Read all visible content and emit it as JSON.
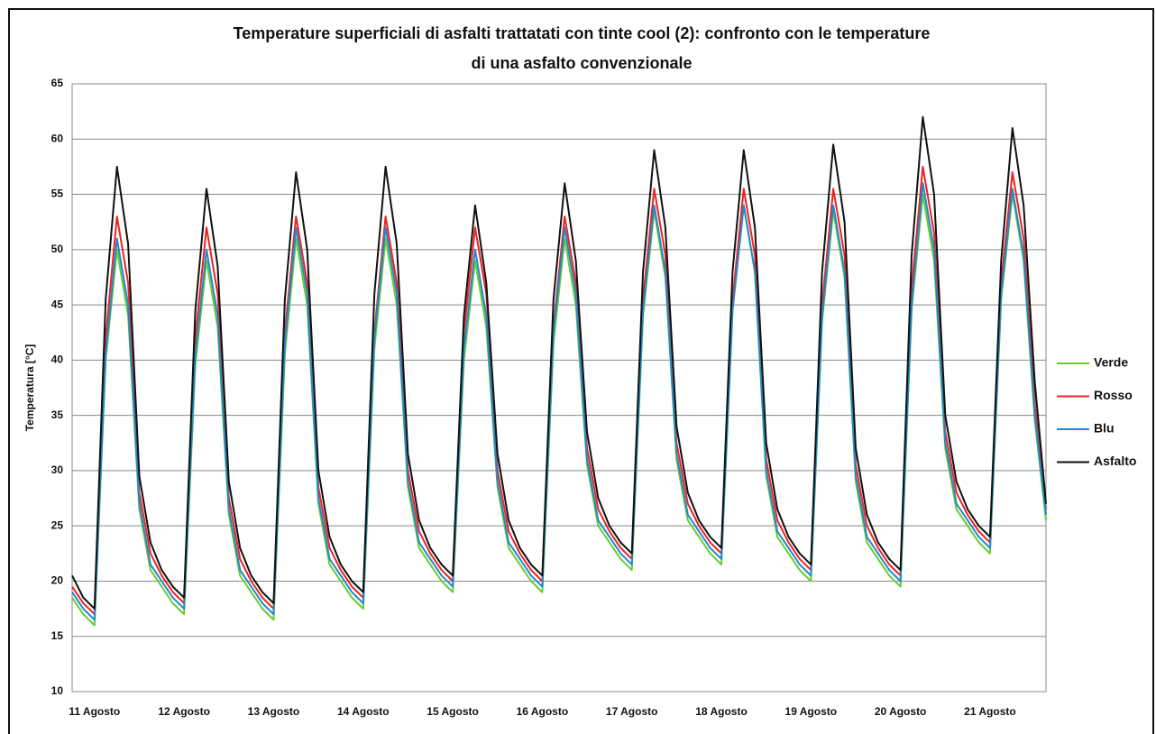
{
  "chart_data": {
    "type": "line",
    "title": [
      "Temperature  superficiali  di asfalti  trattatati  con tinte  cool (2):  confronto con le temperature",
      "di una asfalto  convenzionale"
    ],
    "y_label": "Temperatura [°C]",
    "ylim": [
      10,
      65
    ],
    "yticks": [
      10,
      15,
      20,
      25,
      30,
      35,
      40,
      45,
      50,
      55,
      60,
      65
    ],
    "grid": true,
    "legend": "right",
    "categories": [
      null,
      null,
      "11 Agosto",
      null,
      null,
      null,
      null,
      null,
      null,
      null,
      "12 Agosto",
      null,
      null,
      null,
      null,
      null,
      null,
      null,
      "13 Agosto",
      null,
      null,
      null,
      null,
      null,
      null,
      null,
      "14 Agosto",
      null,
      null,
      null,
      null,
      null,
      null,
      null,
      "15 Agosto",
      null,
      null,
      null,
      null,
      null,
      null,
      null,
      "16 Agosto",
      null,
      null,
      null,
      null,
      null,
      null,
      null,
      "17 Agosto",
      null,
      null,
      null,
      null,
      null,
      null,
      null,
      "18 Agosto",
      null,
      null,
      null,
      null,
      null,
      null,
      null,
      "19 Agosto",
      null,
      null,
      null,
      null,
      null,
      null,
      null,
      "20 Agosto",
      null,
      null,
      null,
      null,
      null,
      null,
      null,
      "21 Agosto",
      null,
      null,
      null,
      null,
      null
    ],
    "series": [
      {
        "name": "Verde",
        "color": "#66cc33",
        "values": [
          18.5,
          17,
          16,
          40,
          50,
          44,
          26.5,
          21,
          19.5,
          18,
          17,
          39.5,
          49,
          43,
          26,
          20.5,
          19,
          17.5,
          16.5,
          40.5,
          51,
          45,
          27,
          21.5,
          20,
          18.5,
          17.5,
          41,
          51,
          45,
          28.5,
          23,
          21.5,
          20,
          19,
          40,
          49,
          43,
          28.5,
          23,
          21.5,
          20,
          19,
          41.5,
          51,
          45,
          30.5,
          25,
          23.5,
          22,
          21,
          44,
          53.5,
          47.5,
          31,
          25.5,
          24,
          22.5,
          21.5,
          44.5,
          54,
          48,
          29.5,
          24,
          22.5,
          21,
          20,
          43.5,
          53.5,
          47.5,
          29,
          23.5,
          22,
          20.5,
          19.5,
          44.5,
          55,
          49,
          32,
          26.5,
          25,
          23.5,
          22.5,
          45.5,
          55,
          49,
          34.5,
          25.5
        ]
      },
      {
        "name": "Rosso",
        "color": "#ee2222",
        "values": [
          19.5,
          18,
          17,
          42,
          53,
          47,
          28,
          22.5,
          20.5,
          19,
          18,
          42,
          52,
          46,
          27.5,
          22,
          20,
          18.5,
          17.5,
          42.5,
          53,
          47,
          28.5,
          23,
          21,
          19.5,
          18.5,
          42.5,
          53,
          47,
          30,
          24.5,
          22.5,
          21,
          20,
          42.5,
          52,
          46,
          30,
          24.5,
          22.5,
          21,
          20,
          43,
          53,
          47,
          32,
          26.5,
          24.5,
          23,
          22,
          45.5,
          55.5,
          49.5,
          32.5,
          27,
          25,
          23.5,
          22.5,
          45.5,
          55.5,
          49.5,
          31,
          25.5,
          23.5,
          22,
          21,
          45,
          55.5,
          49.5,
          30.5,
          25,
          23,
          21.5,
          20.5,
          46.5,
          57.5,
          51.5,
          33.5,
          28,
          26,
          24.5,
          23.5,
          47,
          57,
          51,
          36,
          26.5
        ]
      },
      {
        "name": "Blu",
        "color": "#2288cc",
        "values": [
          19,
          17.5,
          16.5,
          40.5,
          51,
          45,
          27,
          21.5,
          20,
          18.5,
          17.5,
          40.5,
          50,
          44,
          26.5,
          21,
          19.5,
          18,
          17,
          41.5,
          52,
          46,
          27.5,
          22,
          20.5,
          19,
          18,
          42,
          52,
          46,
          29,
          23.5,
          22,
          20.5,
          19.5,
          41,
          50,
          44,
          29,
          23.5,
          22,
          20.5,
          19.5,
          42.5,
          52,
          46,
          31,
          25.5,
          24,
          22.5,
          21.5,
          44.5,
          54,
          48,
          31.5,
          26,
          24.5,
          23,
          22,
          44.5,
          54,
          48,
          30,
          24.5,
          23,
          21.5,
          20.5,
          44,
          54,
          48,
          29.5,
          24,
          22.5,
          21,
          20,
          45,
          56,
          50,
          32.5,
          27,
          25.5,
          24,
          23,
          46,
          55.5,
          49.5,
          35,
          26
        ]
      },
      {
        "name": "Asfalto",
        "color": "#111111",
        "values": [
          20.5,
          18.5,
          17.5,
          45.5,
          57.5,
          50.5,
          29.5,
          23.5,
          21,
          19.5,
          18.5,
          44.5,
          55.5,
          48.5,
          29,
          23,
          20.5,
          19,
          18,
          45.5,
          57,
          50,
          30,
          24,
          21.5,
          20,
          19,
          46,
          57.5,
          50.5,
          31.5,
          25.5,
          23,
          21.5,
          20.5,
          44,
          54,
          47,
          31.5,
          25.5,
          23,
          21.5,
          20.5,
          45.5,
          56,
          49,
          33.5,
          27.5,
          25,
          23.5,
          22.5,
          48,
          59,
          52,
          34,
          28,
          25.5,
          24,
          23,
          48,
          59,
          52,
          32.5,
          26.5,
          24,
          22.5,
          21.5,
          48,
          59.5,
          52.5,
          32,
          26,
          23.5,
          22,
          21,
          49.5,
          62,
          55,
          35,
          29,
          26.5,
          25,
          24,
          49,
          61,
          54,
          38,
          27
        ]
      }
    ]
  }
}
